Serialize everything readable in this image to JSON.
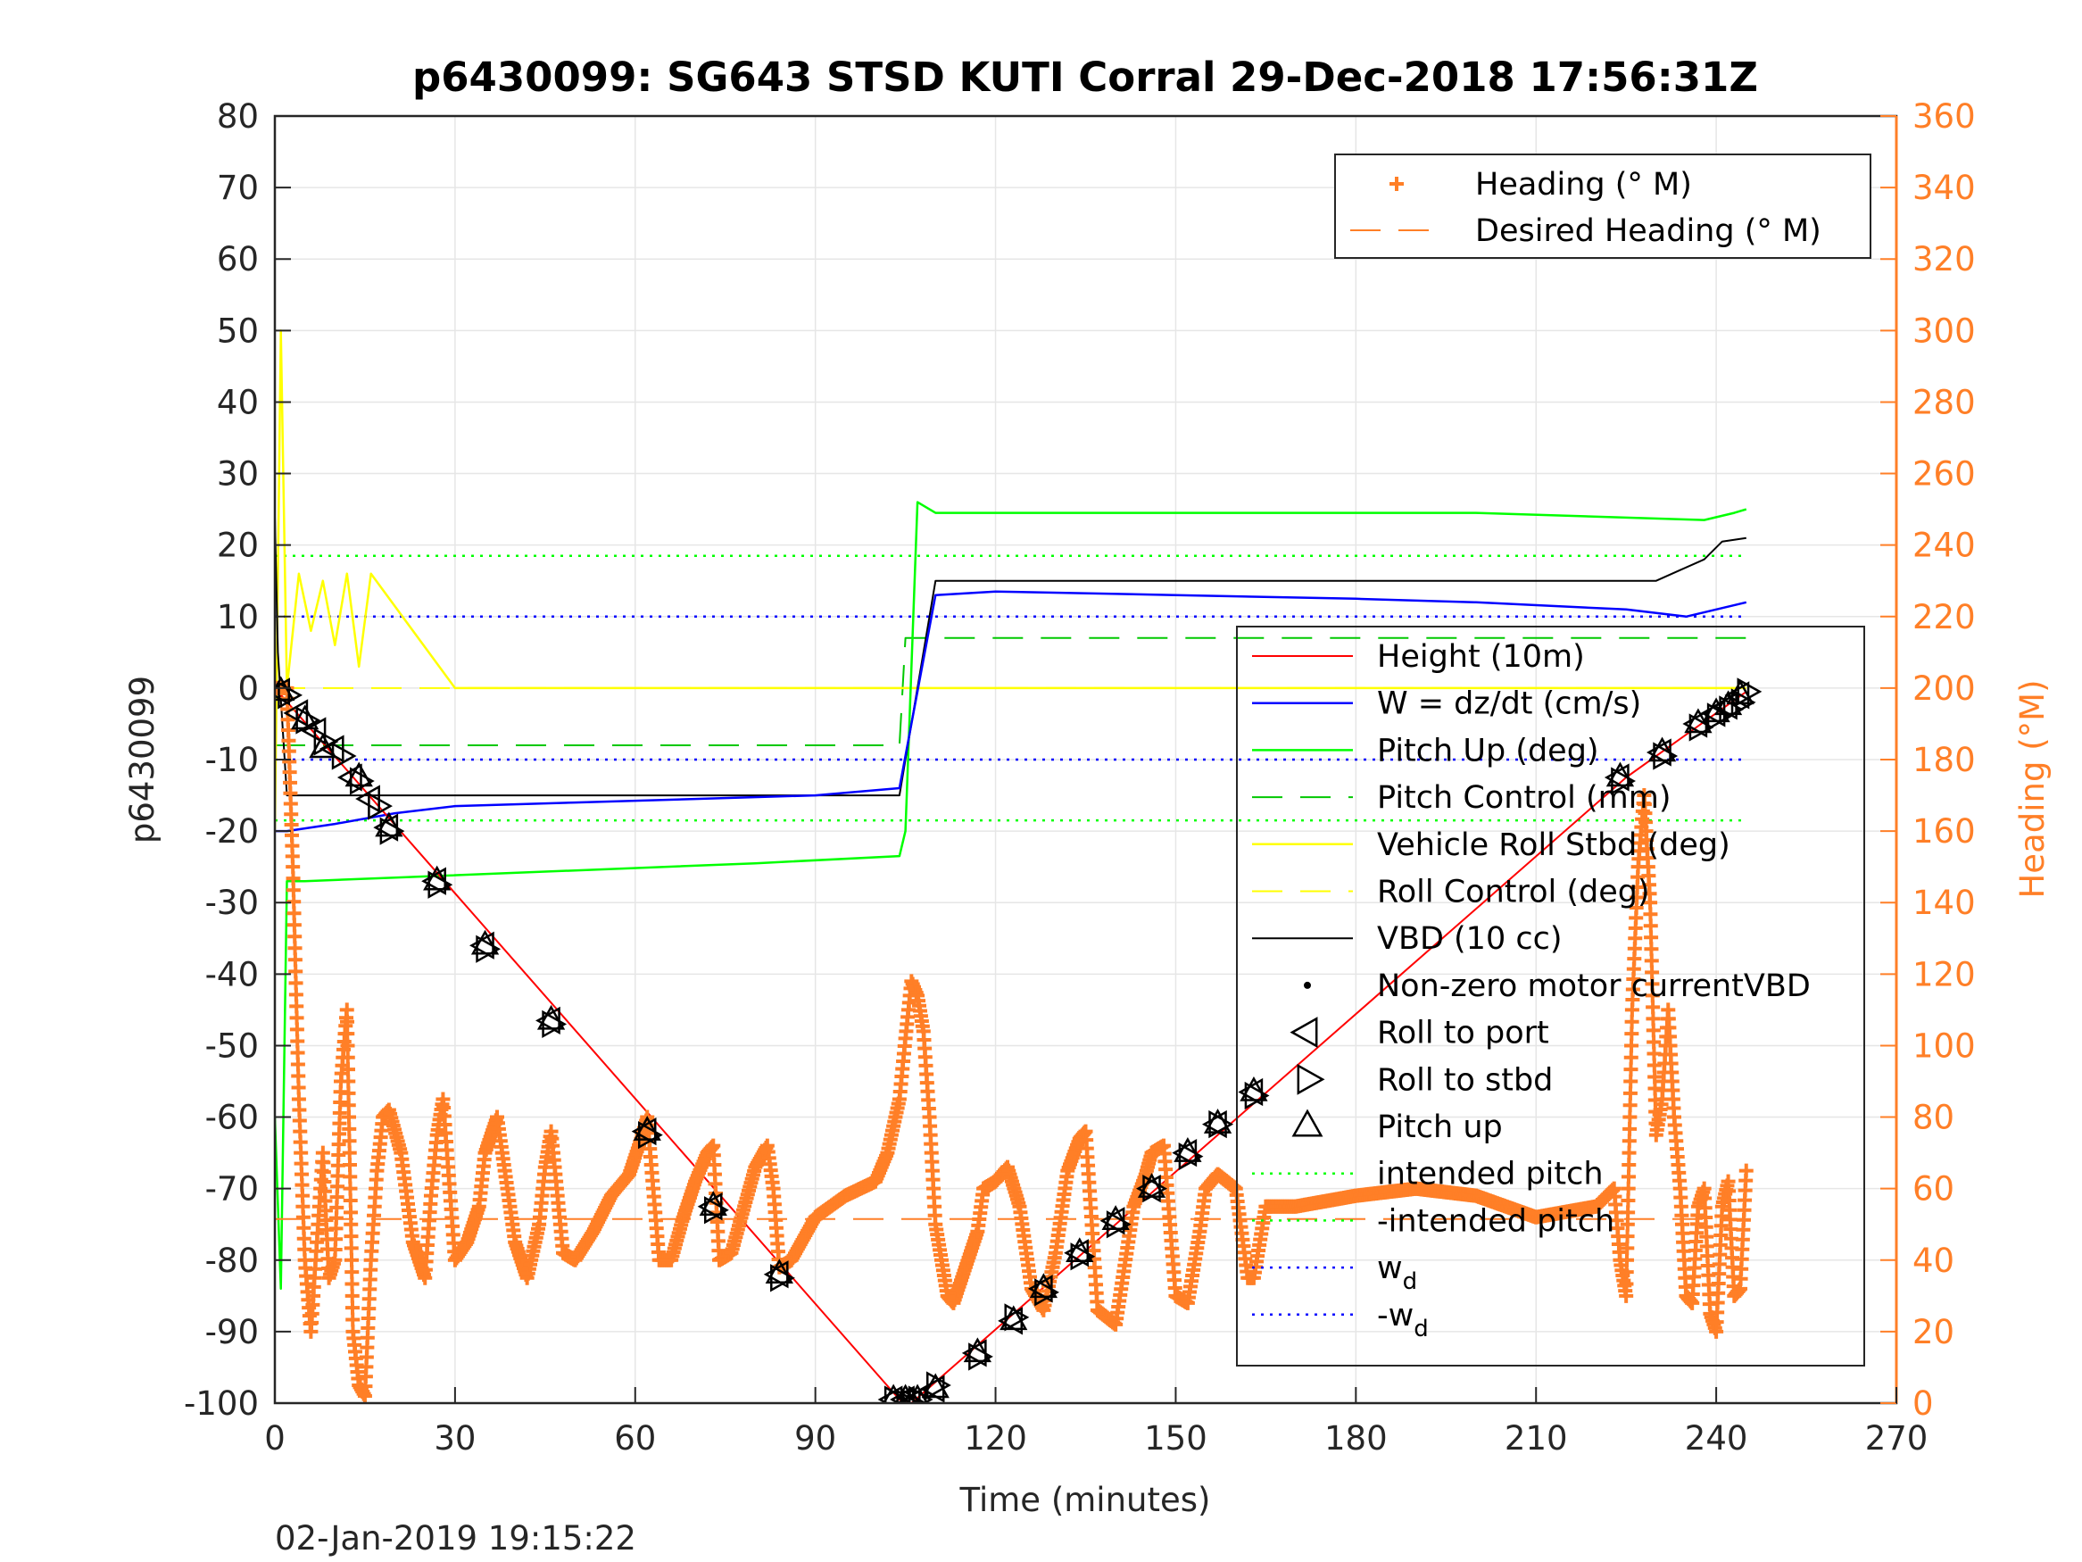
{
  "chart_data": {
    "type": "line",
    "title": "p6430099: SG643 STSD KUTI Corral 29-Dec-2018 17:56:31Z",
    "xlabel": "Time (minutes)",
    "ylabel_left": "p6430099",
    "ylabel_right": "Heading (°M)",
    "footer": "02-Jan-2019 19:15:22",
    "xlim": [
      0,
      270
    ],
    "ylim_left": [
      -100,
      80
    ],
    "ylim_right": [
      0,
      360
    ],
    "x_ticks": [
      "0",
      "30",
      "60",
      "90",
      "120",
      "150",
      "180",
      "210",
      "240",
      "270"
    ],
    "y_ticks_left": [
      "80",
      "70",
      "60",
      "50",
      "40",
      "30",
      "20",
      "10",
      "0",
      "-10",
      "-20",
      "-30",
      "-40",
      "-50",
      "-60",
      "-70",
      "-80",
      "-90",
      "-100"
    ],
    "y_ticks_right": [
      "360",
      "340",
      "320",
      "300",
      "280",
      "260",
      "240",
      "220",
      "200",
      "180",
      "160",
      "140",
      "120",
      "100",
      "80",
      "60",
      "40",
      "20",
      "0"
    ],
    "grid": true,
    "legend_heading": {
      "placement": "top-right",
      "entries": [
        "Heading (° M)",
        "Desired Heading (° M)"
      ]
    },
    "legend_main": {
      "placement": "right",
      "entries": [
        "Height (10m)",
        "W = dz/dt (cm/s)",
        "Pitch Up (deg)",
        "Pitch Control (mm)",
        "Vehicle Roll Stbd (deg)",
        "Roll Control (deg)",
        "VBD (10 cc)",
        "Non-zero motor currentVBD",
        "Roll to port",
        "Roll to stbd",
        "Pitch up",
        "intended pitch",
        "-intended pitch",
        "w",
        "-w"
      ],
      "subscripts": {
        "w": "d",
        "-w": "d"
      }
    },
    "colors": {
      "height": "#ff0000",
      "w": "#0000ff",
      "pitch": "#00ff00",
      "pitch_control": "#00c800",
      "roll": "#ffff00",
      "vbd": "#000000",
      "heading": "#ff7f27",
      "intended_pitch": "#00ff00",
      "wd": "#0000ff",
      "grid": "#e6e6e6"
    },
    "series": [
      {
        "name": "Height (10m)",
        "x": [
          0,
          104,
          106,
          225,
          245
        ],
        "y": [
          0,
          -99.5,
          -100,
          -12.5,
          -0.5
        ]
      },
      {
        "name": "W = dz/dt (cm/s)",
        "x": [
          0,
          2,
          10,
          20,
          30,
          50,
          70,
          90,
          104,
          106,
          110,
          120,
          150,
          180,
          200,
          225,
          235,
          245
        ],
        "y": [
          -20,
          -20,
          -19,
          -17.5,
          -16.5,
          -16,
          -15.5,
          -15,
          -14,
          -5,
          13,
          13.5,
          13,
          12.5,
          12,
          11,
          10,
          12
        ]
      },
      {
        "name": "Pitch Up (deg)",
        "x": [
          0,
          1,
          2,
          5,
          20,
          50,
          80,
          104,
          105,
          107,
          110,
          150,
          200,
          238,
          243,
          245
        ],
        "y": [
          -60,
          -84,
          -27,
          -27,
          -26.5,
          -25.5,
          -24.5,
          -23.5,
          -20,
          26,
          24.5,
          24.5,
          24.5,
          23.5,
          24.5,
          25
        ]
      },
      {
        "name": "Pitch Control (mm)",
        "x": [
          0,
          104,
          105,
          245
        ],
        "y": [
          -8,
          -8,
          7,
          7
        ]
      },
      {
        "name": "Vehicle Roll Stbd (deg)",
        "x": [
          0,
          1,
          2,
          4,
          6,
          8,
          10,
          12,
          14,
          16,
          30,
          60,
          90,
          104,
          106,
          110,
          150,
          200,
          245
        ],
        "y": [
          -20,
          50,
          0,
          16,
          8,
          15,
          6,
          16,
          3,
          16,
          0,
          0,
          0,
          0,
          0,
          0,
          0,
          0,
          0
        ]
      },
      {
        "name": "Roll Control (deg)",
        "x": [
          0,
          245
        ],
        "y": [
          0,
          0
        ]
      },
      {
        "name": "VBD (10 cc)",
        "x": [
          0,
          0.5,
          2,
          104,
          106,
          110,
          200,
          230,
          234,
          238,
          241,
          245
        ],
        "y": [
          24,
          5,
          -15,
          -15,
          -5,
          15,
          15,
          15,
          16.5,
          18,
          20.5,
          21
        ]
      },
      {
        "name": "intended pitch",
        "x": [
          0,
          245
        ],
        "y": [
          18.5,
          18.5
        ]
      },
      {
        "name": "-intended pitch",
        "x": [
          0,
          245
        ],
        "y": [
          -18.5,
          -18.5
        ]
      },
      {
        "name": "w",
        "x": [
          0,
          245
        ],
        "y": [
          10,
          10
        ]
      },
      {
        "name": "-w",
        "x": [
          0,
          245
        ],
        "y": [
          -10,
          -10
        ]
      },
      {
        "name": "Desired Heading (° M)",
        "axis": "right",
        "x": [
          0,
          245
        ],
        "y": [
          51.5,
          51.5
        ]
      },
      {
        "name": "Heading (° M)",
        "axis": "right",
        "x": [
          0,
          2,
          3,
          4,
          5,
          6,
          7,
          8,
          9,
          10,
          11,
          12,
          13,
          14,
          15,
          16,
          17,
          18,
          19,
          21,
          23,
          25,
          26,
          27,
          28,
          30,
          32,
          34,
          35,
          37,
          40,
          42,
          44,
          45,
          46,
          48,
          50,
          53,
          56,
          59,
          61,
          62,
          63,
          64,
          66,
          68,
          70,
          72,
          73,
          74,
          76,
          78,
          80,
          82,
          83,
          84,
          86,
          90,
          95,
          100,
          102,
          104,
          105,
          106,
          107,
          108,
          109,
          110,
          111,
          112,
          113,
          115,
          117,
          118,
          120,
          122,
          124,
          126,
          128,
          130,
          132,
          134,
          135,
          137,
          140,
          143,
          145,
          146,
          148,
          150,
          152,
          154,
          155,
          157,
          160,
          162,
          163,
          165,
          170,
          180,
          190,
          200,
          210,
          220,
          223,
          224,
          225,
          226,
          227,
          228,
          229,
          230,
          231,
          232,
          233,
          234,
          235,
          236,
          237,
          238,
          239,
          240,
          241,
          242,
          243,
          244,
          245
        ],
        "y": [
          200,
          200,
          150,
          85,
          40,
          20,
          45,
          70,
          35,
          40,
          90,
          110,
          20,
          5,
          2,
          40,
          65,
          80,
          82,
          70,
          45,
          35,
          58,
          75,
          85,
          40,
          45,
          55,
          70,
          80,
          45,
          35,
          50,
          66,
          76,
          42,
          40,
          48,
          58,
          64,
          74,
          80,
          60,
          40,
          40,
          52,
          62,
          70,
          72,
          40,
          42,
          54,
          66,
          72,
          60,
          38,
          40,
          52,
          58,
          62,
          70,
          85,
          102,
          118,
          114,
          104,
          80,
          50,
          40,
          30,
          28,
          38,
          48,
          60,
          62,
          66,
          55,
          32,
          26,
          42,
          65,
          74,
          76,
          26,
          22,
          55,
          64,
          70,
          72,
          30,
          28,
          48,
          60,
          64,
          60,
          35,
          35,
          55,
          55,
          58,
          60,
          58,
          52,
          55,
          60,
          40,
          30,
          110,
          150,
          170,
          140,
          75,
          85,
          110,
          80,
          60,
          30,
          28,
          55,
          60,
          25,
          20,
          55,
          62,
          30,
          32,
          65
        ]
      },
      {
        "name": "Pitch up",
        "marker": "triangle-up",
        "x": [
          1,
          5,
          8,
          14,
          19,
          27,
          35,
          46,
          62,
          73,
          84,
          103,
          105,
          106,
          107,
          110,
          117,
          123,
          128,
          134,
          140,
          146,
          152,
          157,
          163,
          224,
          231,
          237,
          240,
          242,
          244
        ],
        "y": [
          -0.5,
          -4.5,
          -8.5,
          -12.5,
          -19.5,
          -27,
          -36,
          -46.5,
          -62,
          -72.5,
          -82,
          -99.5,
          -99.5,
          -100,
          -99.5,
          -98,
          -93,
          -88.5,
          -84,
          -79,
          -74.5,
          -70,
          -65,
          -61,
          -56.5,
          -12.5,
          -9,
          -5,
          -3.5,
          -2.5,
          -1
        ]
      },
      {
        "name": "Roll to port",
        "marker": "triangle-left",
        "x": [
          1,
          4,
          7,
          10,
          13,
          16,
          19,
          27,
          35,
          46,
          62,
          73,
          84,
          103,
          105,
          106,
          107,
          110,
          117,
          123,
          128,
          134,
          140,
          146,
          152,
          157,
          163,
          224,
          231,
          237,
          240,
          242,
          244
        ],
        "y": [
          -0.5,
          -3.5,
          -6,
          -8.5,
          -12.5,
          -15.5,
          -19.5,
          -27,
          -36,
          -46.5,
          -62,
          -72.5,
          -82,
          -99.5,
          -99.5,
          -100,
          -99.5,
          -98,
          -93,
          -88.5,
          -84,
          -79,
          -74.5,
          -70,
          -65,
          -61,
          -56.5,
          -12.5,
          -9,
          -5,
          -3.5,
          -2.5,
          -1
        ]
      },
      {
        "name": "Roll to stbd",
        "marker": "triangle-right",
        "x": [
          2,
          5,
          8,
          11,
          14,
          17,
          19,
          27,
          35,
          46,
          62,
          73,
          84,
          103,
          105,
          106,
          107,
          110,
          117,
          123,
          128,
          134,
          140,
          146,
          152,
          157,
          163,
          224,
          231,
          237,
          240,
          242,
          244,
          245
        ],
        "y": [
          -1,
          -4.5,
          -7.5,
          -9.5,
          -13,
          -16.5,
          -20,
          -27.5,
          -36.5,
          -47,
          -62.5,
          -73,
          -82.5,
          -99.5,
          -100,
          -100,
          -99.5,
          -97.5,
          -93.5,
          -88,
          -84.5,
          -79.5,
          -75,
          -70,
          -65.5,
          -61,
          -57,
          -13,
          -9.5,
          -5.5,
          -4,
          -3,
          -2,
          -0.5
        ]
      }
    ]
  }
}
